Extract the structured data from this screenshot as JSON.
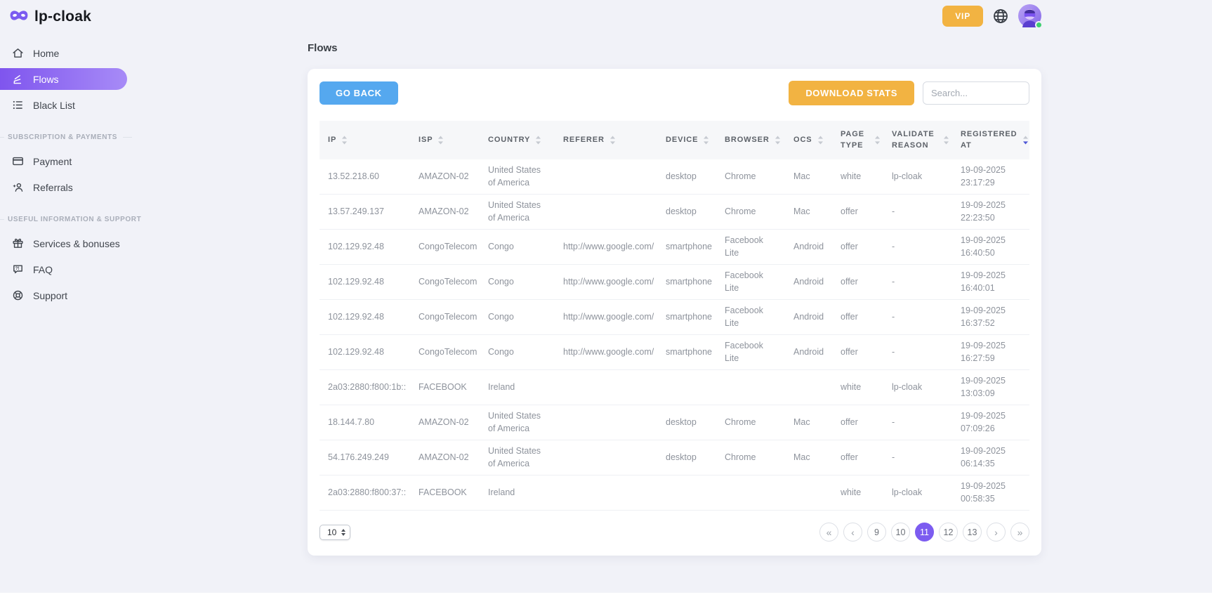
{
  "brand": {
    "name": "lp-cloak",
    "logo_icon": "mask-icon"
  },
  "topbar": {
    "vip_label": "VIP",
    "language_icon": "globe-icon",
    "avatar": {
      "status": "online"
    }
  },
  "sidebar": {
    "items": [
      {
        "label": "Home",
        "icon": "home-icon",
        "active": false
      },
      {
        "label": "Flows",
        "icon": "flows-icon",
        "active": true
      },
      {
        "label": "Black List",
        "icon": "blacklist-icon",
        "active": false
      }
    ],
    "sections": [
      {
        "label": "SUBSCRIPTION & PAYMENTS",
        "items": [
          {
            "label": "Payment",
            "icon": "payment-icon",
            "active": false
          },
          {
            "label": "Referrals",
            "icon": "referrals-icon",
            "active": false
          }
        ]
      },
      {
        "label": "USEFUL INFORMATION & SUPPORT",
        "items": [
          {
            "label": "Services & bonuses",
            "icon": "services-icon",
            "active": false
          },
          {
            "label": "FAQ",
            "icon": "faq-icon",
            "active": false
          },
          {
            "label": "Support",
            "icon": "support-icon",
            "active": false
          }
        ]
      }
    ]
  },
  "page": {
    "title": "Flows"
  },
  "toolbar": {
    "go_back_label": "GO BACK",
    "download_stats_label": "DOWNLOAD STATS",
    "search_placeholder": "Search..."
  },
  "table": {
    "columns": [
      {
        "label": "IP"
      },
      {
        "label": "ISP"
      },
      {
        "label": "COUNTRY"
      },
      {
        "label": "REFERER"
      },
      {
        "label": "DEVICE"
      },
      {
        "label": "BROWSER"
      },
      {
        "label": "OCS"
      },
      {
        "label": "PAGE TYPE"
      },
      {
        "label": "VALIDATE REASON"
      },
      {
        "label": "REGISTERED AT",
        "sort_active": "desc"
      }
    ],
    "rows": [
      {
        "ip": "13.52.218.60",
        "isp": "AMAZON-02",
        "country": "United States of America",
        "referer": "",
        "device": "desktop",
        "browser": "Chrome",
        "ocs": "Mac",
        "page_type": "white",
        "validate_reason": "lp-cloak",
        "registered_at": "19-09-2025 23:17:29"
      },
      {
        "ip": "13.57.249.137",
        "isp": "AMAZON-02",
        "country": "United States of America",
        "referer": "",
        "device": "desktop",
        "browser": "Chrome",
        "ocs": "Mac",
        "page_type": "offer",
        "validate_reason": "-",
        "registered_at": "19-09-2025 22:23:50"
      },
      {
        "ip": "102.129.92.48",
        "isp": "CongoTelecom",
        "country": "Congo",
        "referer": "http://www.google.com/",
        "device": "smartphone",
        "browser": "Facebook Lite",
        "ocs": "Android",
        "page_type": "offer",
        "validate_reason": "-",
        "registered_at": "19-09-2025 16:40:50"
      },
      {
        "ip": "102.129.92.48",
        "isp": "CongoTelecom",
        "country": "Congo",
        "referer": "http://www.google.com/",
        "device": "smartphone",
        "browser": "Facebook Lite",
        "ocs": "Android",
        "page_type": "offer",
        "validate_reason": "-",
        "registered_at": "19-09-2025 16:40:01"
      },
      {
        "ip": "102.129.92.48",
        "isp": "CongoTelecom",
        "country": "Congo",
        "referer": "http://www.google.com/",
        "device": "smartphone",
        "browser": "Facebook Lite",
        "ocs": "Android",
        "page_type": "offer",
        "validate_reason": "-",
        "registered_at": "19-09-2025 16:37:52"
      },
      {
        "ip": "102.129.92.48",
        "isp": "CongoTelecom",
        "country": "Congo",
        "referer": "http://www.google.com/",
        "device": "smartphone",
        "browser": "Facebook Lite",
        "ocs": "Android",
        "page_type": "offer",
        "validate_reason": "-",
        "registered_at": "19-09-2025 16:27:59"
      },
      {
        "ip": "2a03:2880:f800:1b::",
        "isp": "FACEBOOK",
        "country": "Ireland",
        "referer": "",
        "device": "",
        "browser": "",
        "ocs": "",
        "page_type": "white",
        "validate_reason": "lp-cloak",
        "registered_at": "19-09-2025 13:03:09"
      },
      {
        "ip": "18.144.7.80",
        "isp": "AMAZON-02",
        "country": "United States of America",
        "referer": "",
        "device": "desktop",
        "browser": "Chrome",
        "ocs": "Mac",
        "page_type": "offer",
        "validate_reason": "-",
        "registered_at": "19-09-2025 07:09:26"
      },
      {
        "ip": "54.176.249.249",
        "isp": "AMAZON-02",
        "country": "United States of America",
        "referer": "",
        "device": "desktop",
        "browser": "Chrome",
        "ocs": "Mac",
        "page_type": "offer",
        "validate_reason": "-",
        "registered_at": "19-09-2025 06:14:35"
      },
      {
        "ip": "2a03:2880:f800:37::",
        "isp": "FACEBOOK",
        "country": "Ireland",
        "referer": "",
        "device": "",
        "browser": "",
        "ocs": "",
        "page_type": "white",
        "validate_reason": "lp-cloak",
        "registered_at": "19-09-2025 00:58:35"
      }
    ]
  },
  "pagination": {
    "page_size": "10",
    "pages": [
      {
        "label": "«",
        "name": "first-page-button"
      },
      {
        "label": "‹",
        "name": "prev-page-button"
      },
      {
        "label": "9",
        "name": "page-9-button"
      },
      {
        "label": "10",
        "name": "page-10-button"
      },
      {
        "label": "11",
        "name": "page-11-button",
        "active": true
      },
      {
        "label": "12",
        "name": "page-12-button"
      },
      {
        "label": "13",
        "name": "page-13-button"
      },
      {
        "label": "›",
        "name": "next-page-button"
      },
      {
        "label": "»",
        "name": "last-page-button"
      }
    ]
  },
  "colors": {
    "accent_purple": "#7c5cf0",
    "amber": "#f2b342",
    "blue": "#55a8ef",
    "status_green": "#3ecf70",
    "sort_active_blue": "#4f58d6",
    "page_background": "#f1f2f8"
  }
}
